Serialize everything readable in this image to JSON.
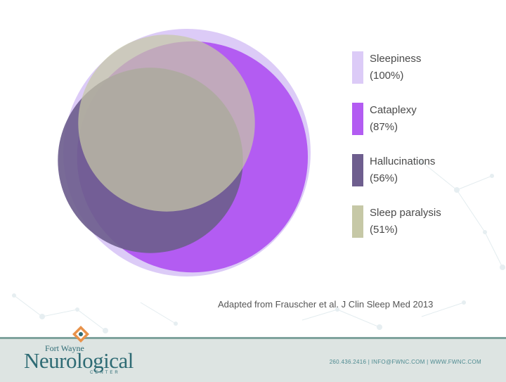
{
  "diagram": {
    "type": "venn-area",
    "sets": [
      {
        "name": "Sleepiness",
        "pct": 100,
        "color": "#dccbf7"
      },
      {
        "name": "Cataplexy",
        "pct": 87,
        "color": "#b35cf2"
      },
      {
        "name": "Hallucinations",
        "pct": 56,
        "color": "#6e5e8e"
      },
      {
        "name": "Sleep paralysis",
        "pct": 51,
        "color": "#c6c8a6"
      }
    ]
  },
  "legend": [
    {
      "label": "Sleepiness",
      "value": "(100%)",
      "color": "#dccbf7"
    },
    {
      "label": "Cataplexy",
      "value": "(87%)",
      "color": "#b35cf2"
    },
    {
      "label": "Hallucinations",
      "value": "(56%)",
      "color": "#6e5e8e"
    },
    {
      "label": "Sleep paralysis",
      "value": "(51%)",
      "color": "#c6c8a6"
    }
  ],
  "citation": "Adapted from Frauscher et al. J Clin Sleep Med 2013",
  "footer": {
    "logo_top": "Fort Wayne",
    "logo_main": "Neurological",
    "logo_sub": "CENTER",
    "contact": "260.436.2416  |  INFO@FWNC.COM  |  WWW.FWNC.COM"
  }
}
